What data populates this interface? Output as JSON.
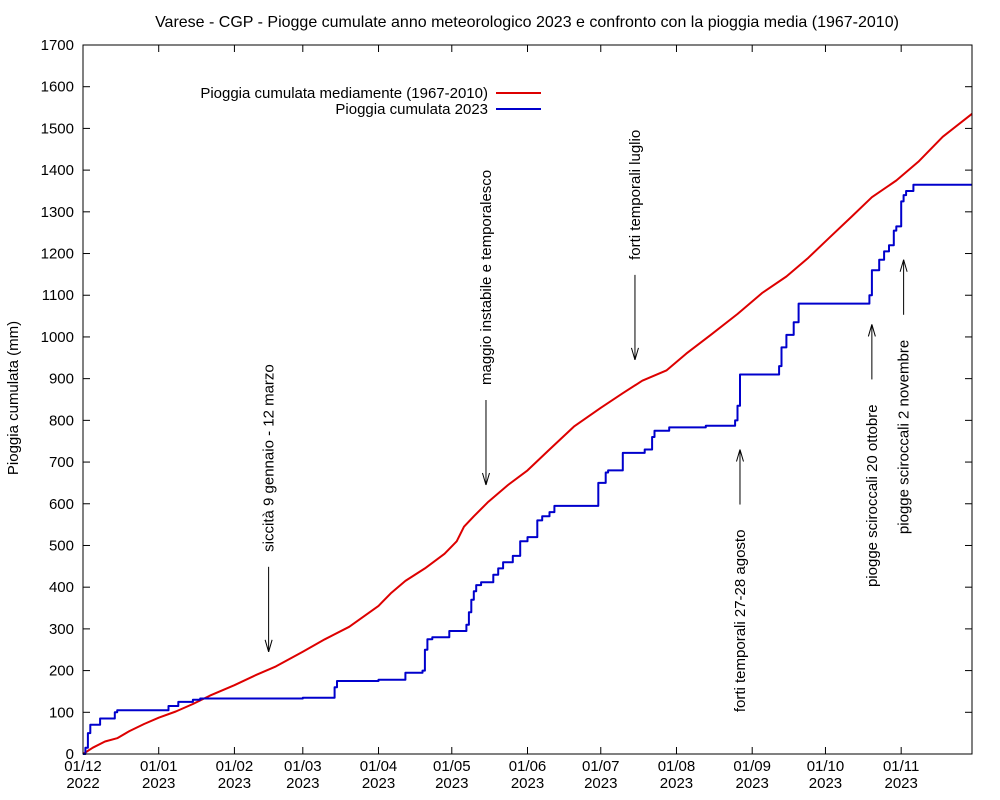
{
  "chart_data": {
    "type": "line",
    "title": "Varese - CGP - Piogge cumulate anno meteorologico 2023 e confronto con la pioggia media (1967-2010)",
    "xlabel": "",
    "ylabel": "Pioggia cumulata (mm)",
    "xlim": [
      "2022-12-01",
      "2023-11-30"
    ],
    "ylim": [
      0,
      1700
    ],
    "yticks": [
      0,
      100,
      200,
      300,
      400,
      500,
      600,
      700,
      800,
      900,
      1000,
      1100,
      1200,
      1300,
      1400,
      1500,
      1600,
      1700
    ],
    "xticks": [
      {
        "date": "2022-12-01",
        "line1": "01/12",
        "line2": "2022"
      },
      {
        "date": "2023-01-01",
        "line1": "01/01",
        "line2": "2023"
      },
      {
        "date": "2023-02-01",
        "line1": "01/02",
        "line2": "2023"
      },
      {
        "date": "2023-03-01",
        "line1": "01/03",
        "line2": "2023"
      },
      {
        "date": "2023-04-01",
        "line1": "01/04",
        "line2": "2023"
      },
      {
        "date": "2023-05-01",
        "line1": "01/05",
        "line2": "2023"
      },
      {
        "date": "2023-06-01",
        "line1": "01/06",
        "line2": "2023"
      },
      {
        "date": "2023-07-01",
        "line1": "01/07",
        "line2": "2023"
      },
      {
        "date": "2023-08-01",
        "line1": "01/08",
        "line2": "2023"
      },
      {
        "date": "2023-09-01",
        "line1": "01/09",
        "line2": "2023"
      },
      {
        "date": "2023-10-01",
        "line1": "01/10",
        "line2": "2023"
      },
      {
        "date": "2023-11-01",
        "line1": "01/11",
        "line2": "2023"
      }
    ],
    "legend_position": "top-left",
    "grid": false,
    "series": [
      {
        "name": "Pioggia cumulata mediamente (1967-2010)",
        "color": "#dd0000",
        "style": "smooth",
        "points": [
          [
            "2022-12-01",
            0
          ],
          [
            "2022-12-05",
            15
          ],
          [
            "2022-12-10",
            30
          ],
          [
            "2022-12-15",
            38
          ],
          [
            "2022-12-20",
            55
          ],
          [
            "2022-12-26",
            72
          ],
          [
            "2023-01-01",
            87
          ],
          [
            "2023-01-08",
            102
          ],
          [
            "2023-01-15",
            120
          ],
          [
            "2023-01-22",
            140
          ],
          [
            "2023-02-01",
            165
          ],
          [
            "2023-02-10",
            190
          ],
          [
            "2023-02-18",
            210
          ],
          [
            "2023-03-01",
            245
          ],
          [
            "2023-03-10",
            275
          ],
          [
            "2023-03-20",
            305
          ],
          [
            "2023-04-01",
            355
          ],
          [
            "2023-04-06",
            385
          ],
          [
            "2023-04-12",
            415
          ],
          [
            "2023-04-20",
            445
          ],
          [
            "2023-04-28",
            480
          ],
          [
            "2023-05-03",
            510
          ],
          [
            "2023-05-06",
            545
          ],
          [
            "2023-05-10",
            570
          ],
          [
            "2023-05-16",
            605
          ],
          [
            "2023-05-24",
            645
          ],
          [
            "2023-06-01",
            680
          ],
          [
            "2023-06-10",
            730
          ],
          [
            "2023-06-20",
            785
          ],
          [
            "2023-07-01",
            830
          ],
          [
            "2023-07-10",
            865
          ],
          [
            "2023-07-18",
            895
          ],
          [
            "2023-07-28",
            920
          ],
          [
            "2023-08-05",
            960
          ],
          [
            "2023-08-15",
            1005
          ],
          [
            "2023-08-26",
            1055
          ],
          [
            "2023-09-05",
            1105
          ],
          [
            "2023-09-15",
            1145
          ],
          [
            "2023-09-24",
            1190
          ],
          [
            "2023-10-03",
            1240
          ],
          [
            "2023-10-12",
            1290
          ],
          [
            "2023-10-20",
            1335
          ],
          [
            "2023-10-30",
            1375
          ],
          [
            "2023-11-08",
            1420
          ],
          [
            "2023-11-18",
            1480
          ],
          [
            "2023-11-30",
            1535
          ]
        ]
      },
      {
        "name": "Pioggia cumulata 2023",
        "color": "#0000cc",
        "style": "step",
        "points": [
          [
            "2022-12-01",
            0
          ],
          [
            "2022-12-02",
            15
          ],
          [
            "2022-12-03",
            50
          ],
          [
            "2022-12-04",
            70
          ],
          [
            "2022-12-08",
            85
          ],
          [
            "2022-12-14",
            100
          ],
          [
            "2022-12-15",
            105
          ],
          [
            "2023-01-05",
            115
          ],
          [
            "2023-01-09",
            125
          ],
          [
            "2023-01-15",
            130
          ],
          [
            "2023-01-18",
            133
          ],
          [
            "2023-03-01",
            135
          ],
          [
            "2023-03-14",
            160
          ],
          [
            "2023-03-15",
            175
          ],
          [
            "2023-04-01",
            178
          ],
          [
            "2023-04-12",
            195
          ],
          [
            "2023-04-19",
            200
          ],
          [
            "2023-04-20",
            250
          ],
          [
            "2023-04-21",
            275
          ],
          [
            "2023-04-23",
            280
          ],
          [
            "2023-04-30",
            295
          ],
          [
            "2023-05-07",
            310
          ],
          [
            "2023-05-08",
            340
          ],
          [
            "2023-05-09",
            370
          ],
          [
            "2023-05-10",
            390
          ],
          [
            "2023-05-11",
            405
          ],
          [
            "2023-05-13",
            412
          ],
          [
            "2023-05-18",
            430
          ],
          [
            "2023-05-20",
            445
          ],
          [
            "2023-05-22",
            460
          ],
          [
            "2023-05-26",
            475
          ],
          [
            "2023-05-29",
            510
          ],
          [
            "2023-06-01",
            520
          ],
          [
            "2023-06-05",
            560
          ],
          [
            "2023-06-07",
            570
          ],
          [
            "2023-06-10",
            580
          ],
          [
            "2023-06-12",
            595
          ],
          [
            "2023-06-30",
            650
          ],
          [
            "2023-07-03",
            675
          ],
          [
            "2023-07-04",
            680
          ],
          [
            "2023-07-10",
            722
          ],
          [
            "2023-07-19",
            730
          ],
          [
            "2023-07-22",
            760
          ],
          [
            "2023-07-23",
            775
          ],
          [
            "2023-07-29",
            783
          ],
          [
            "2023-08-13",
            787
          ],
          [
            "2023-08-25",
            800
          ],
          [
            "2023-08-26",
            835
          ],
          [
            "2023-08-27",
            910
          ],
          [
            "2023-09-12",
            930
          ],
          [
            "2023-09-13",
            975
          ],
          [
            "2023-09-15",
            1005
          ],
          [
            "2023-09-18",
            1035
          ],
          [
            "2023-09-20",
            1080
          ],
          [
            "2023-10-19",
            1100
          ],
          [
            "2023-10-20",
            1160
          ],
          [
            "2023-10-23",
            1185
          ],
          [
            "2023-10-25",
            1205
          ],
          [
            "2023-10-27",
            1220
          ],
          [
            "2023-10-29",
            1255
          ],
          [
            "2023-10-30",
            1265
          ],
          [
            "2023-11-01",
            1325
          ],
          [
            "2023-11-02",
            1340
          ],
          [
            "2023-11-03",
            1350
          ],
          [
            "2023-11-06",
            1365
          ],
          [
            "2023-11-30",
            1365
          ]
        ]
      }
    ],
    "annotations": [
      {
        "text": "siccità 9 gennaio - 12 marzo",
        "date": "2023-02-15",
        "arrow": "down",
        "tip_y": 245
      },
      {
        "text": "maggio instabile e temporalesco",
        "date": "2023-05-15",
        "arrow": "down",
        "tip_y": 645
      },
      {
        "text": "forti temporali luglio",
        "date": "2023-07-15",
        "arrow": "down",
        "tip_y": 945
      },
      {
        "text": "forti temporali 27-28 agosto",
        "date": "2023-08-27",
        "arrow": "up",
        "tip_y": 730
      },
      {
        "text": "piogge sciroccali 20 ottobre",
        "date": "2023-10-20",
        "arrow": "up",
        "tip_y": 1030
      },
      {
        "text": "piogge sciroccali 2 novembre",
        "date": "2023-11-02",
        "arrow": "up",
        "tip_y": 1185
      }
    ]
  }
}
